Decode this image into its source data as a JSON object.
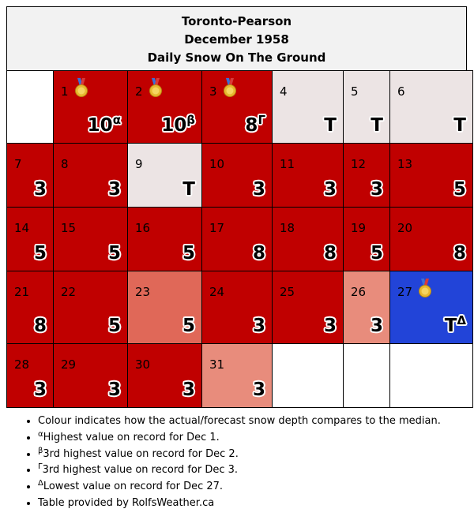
{
  "header": {
    "station": "Toronto-Pearson",
    "month": "December 1958",
    "subtitle": "Daily Snow On The Ground"
  },
  "colors": {
    "above_median": "#c00000",
    "trace": "#ece4e4",
    "moderate": "#e06858",
    "light": "#e88c7c",
    "record_low": "#2244d8",
    "empty": "#ffffff"
  },
  "days": [
    {
      "day": "1",
      "value": "10",
      "sup": "α",
      "medal": true
    },
    {
      "day": "2",
      "value": "10",
      "sup": "β",
      "medal": true
    },
    {
      "day": "3",
      "value": "8",
      "sup": "Γ",
      "medal": true
    },
    {
      "day": "4",
      "value": "T",
      "sup": ""
    },
    {
      "day": "5",
      "value": "T",
      "sup": ""
    },
    {
      "day": "6",
      "value": "T",
      "sup": ""
    },
    {
      "day": "7",
      "value": "3",
      "sup": ""
    },
    {
      "day": "8",
      "value": "3",
      "sup": ""
    },
    {
      "day": "9",
      "value": "T",
      "sup": ""
    },
    {
      "day": "10",
      "value": "3",
      "sup": ""
    },
    {
      "day": "11",
      "value": "3",
      "sup": ""
    },
    {
      "day": "12",
      "value": "3",
      "sup": ""
    },
    {
      "day": "13",
      "value": "5",
      "sup": ""
    },
    {
      "day": "14",
      "value": "5",
      "sup": ""
    },
    {
      "day": "15",
      "value": "5",
      "sup": ""
    },
    {
      "day": "16",
      "value": "5",
      "sup": ""
    },
    {
      "day": "17",
      "value": "8",
      "sup": ""
    },
    {
      "day": "18",
      "value": "8",
      "sup": ""
    },
    {
      "day": "19",
      "value": "5",
      "sup": ""
    },
    {
      "day": "20",
      "value": "8",
      "sup": ""
    },
    {
      "day": "21",
      "value": "8",
      "sup": ""
    },
    {
      "day": "22",
      "value": "5",
      "sup": ""
    },
    {
      "day": "23",
      "value": "5",
      "sup": ""
    },
    {
      "day": "24",
      "value": "3",
      "sup": ""
    },
    {
      "day": "25",
      "value": "3",
      "sup": ""
    },
    {
      "day": "26",
      "value": "3",
      "sup": ""
    },
    {
      "day": "27",
      "value": "T",
      "sup": "Δ",
      "medal": true
    },
    {
      "day": "28",
      "value": "3",
      "sup": ""
    },
    {
      "day": "29",
      "value": "3",
      "sup": ""
    },
    {
      "day": "30",
      "value": "3",
      "sup": ""
    },
    {
      "day": "31",
      "value": "3",
      "sup": ""
    }
  ],
  "notes": [
    {
      "sup": "",
      "text": "Colour indicates how the actual/forecast snow depth compares to the median."
    },
    {
      "sup": "α",
      "text": "Highest value on record for Dec 1."
    },
    {
      "sup": "β",
      "text": "3rd highest value on record for Dec 2."
    },
    {
      "sup": "Γ",
      "text": "3rd highest value on record for Dec 3."
    },
    {
      "sup": "Δ",
      "text": "Lowest value on record for Dec 27."
    },
    {
      "sup": "",
      "text": "Table provided by RolfsWeather.ca"
    }
  ]
}
